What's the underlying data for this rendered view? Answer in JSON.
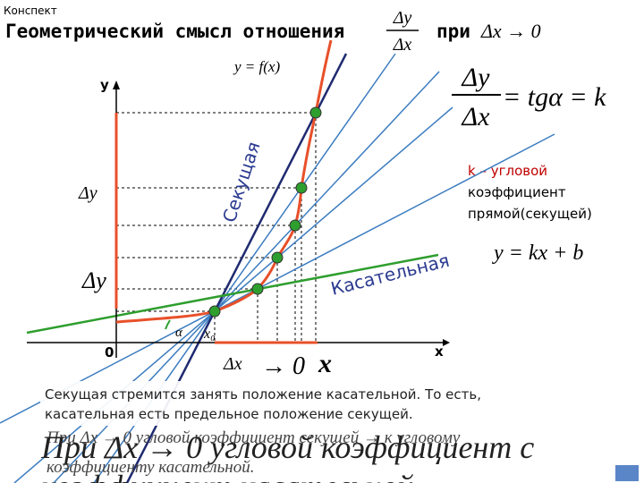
{
  "header": {
    "label": "Конспект",
    "title": "Геометрический смысл отношения",
    "fraction_num": "Δy",
    "fraction_den": "Δx",
    "condition": "при",
    "limit": "Δx → 0"
  },
  "formulas": {
    "function": "y = f(x)",
    "ratio_num": "Δy",
    "ratio_den": "Δx",
    "ratio_rhs": "= tgα = k",
    "line": "y = kx + b"
  },
  "note": [
    "k – угловой",
    "коэффициент",
    "прямой(секущей)"
  ],
  "diagram": {
    "y_axis": "y",
    "x_axis": "x",
    "origin": "0",
    "secant": "Секущая",
    "tangent": "Касательная",
    "delta_y_1": "Δy",
    "delta_y_2": "Δy",
    "delta_x": "Δx",
    "limit": "→ 0",
    "x_mark": "x",
    "x0": "x₀",
    "alpha": "α"
  },
  "caption": [
    "Секущая стремится занять положение касательной. То есть,",
    "касательная есть предельное положение секущей."
  ],
  "background_text": [
    "При Δx → 0 угловой коэффициент секущей → к угловому",
    "При Δx → 0 угловой коэффициент с",
    "коэффициенту касательной.",
    "коэффициент касательной"
  ]
}
